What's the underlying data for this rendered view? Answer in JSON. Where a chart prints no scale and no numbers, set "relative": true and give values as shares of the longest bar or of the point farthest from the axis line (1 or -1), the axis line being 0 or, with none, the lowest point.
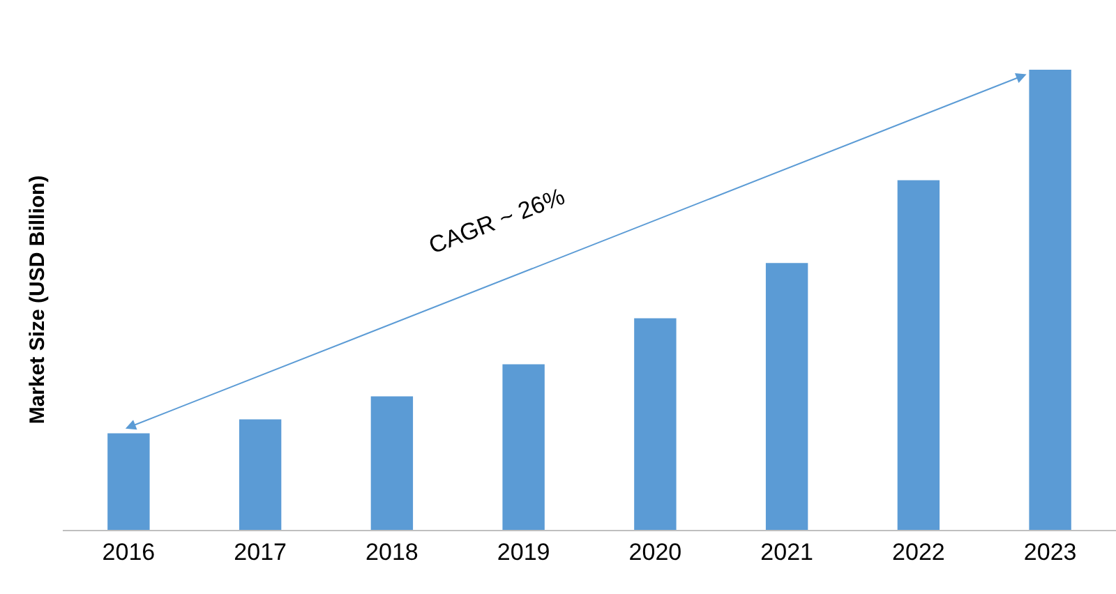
{
  "chart_data": {
    "type": "bar",
    "relative": true,
    "ylabel": "Market Size (USD Billion)",
    "categories": [
      "2016",
      "2017",
      "2018",
      "2019",
      "2020",
      "2021",
      "2022",
      "2023"
    ],
    "values": [
      0.21,
      0.24,
      0.29,
      0.36,
      0.46,
      0.58,
      0.76,
      1
    ],
    "color": "#5b9bd5",
    "annotations": [
      "CAGR ~ 26%"
    ]
  }
}
